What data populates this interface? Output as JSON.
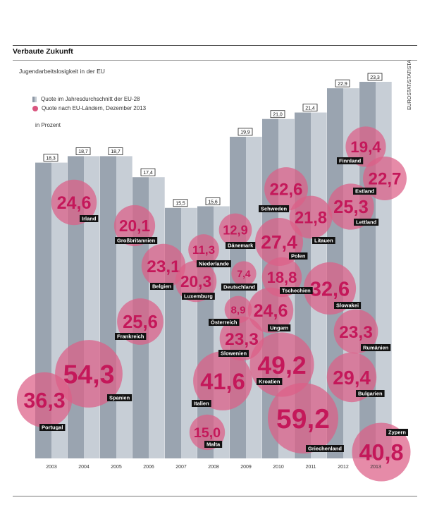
{
  "header": {
    "title": "Verbaute Zukunft",
    "subtitle": "Jugendarbeitslosigkeit in der EU",
    "source": "EUROSTAT/STATISTA"
  },
  "legend": {
    "bar_label": "Quote im Jahresdurchschnitt der EU-28",
    "dot_label": "Quote nach EU-Ländern, Dezember 2013",
    "unit": "in Prozent"
  },
  "colors": {
    "bar_dark": "#9aa4b0",
    "bar_light": "#c7ced6",
    "bubble": "#dd5e87",
    "bubble_text": "#c4185a",
    "label_bg": "#111111"
  },
  "chart_data": [
    {
      "type": "bar",
      "categories": [
        "2003",
        "2004",
        "2005",
        "2006",
        "2007",
        "2008",
        "2009",
        "2010",
        "2011",
        "2012",
        "2013"
      ],
      "values": [
        18.3,
        18.7,
        18.7,
        17.4,
        15.5,
        15.6,
        19.9,
        21.0,
        21.4,
        22.9,
        23.3
      ],
      "value_labels": [
        "18,3",
        "18,7",
        "18,7",
        "17,4",
        "15,5",
        "15,6",
        "19,9",
        "21,0",
        "21,4",
        "22,9",
        "23,3"
      ],
      "series": [
        {
          "name": "Quote im Jahresdurchschnitt der EU-28"
        }
      ]
    },
    {
      "type": "scatter",
      "series": [
        {
          "name": "Quote nach EU-Ländern, Dezember 2013"
        }
      ],
      "points": [
        {
          "country": "Irland",
          "value": 24.6,
          "label": "24,6"
        },
        {
          "country": "Großbritannien",
          "value": 20.1,
          "label": "20,1"
        },
        {
          "country": "Belgien",
          "value": 23.1,
          "label": "23,1"
        },
        {
          "country": "Niederlande",
          "value": 11.3,
          "label": "11,3"
        },
        {
          "country": "Luxemburg",
          "value": 20.3,
          "label": "20,3"
        },
        {
          "country": "Frankreich",
          "value": 25.6,
          "label": "25,6"
        },
        {
          "country": "Spanien",
          "value": 54.3,
          "label": "54,3"
        },
        {
          "country": "Portugal",
          "value": 36.3,
          "label": "36,3"
        },
        {
          "country": "Dänemark",
          "value": 12.9,
          "label": "12,9"
        },
        {
          "country": "Deutschland",
          "value": 7.4,
          "label": "7,4"
        },
        {
          "country": "Österreich",
          "value": 8.9,
          "label": "8,9"
        },
        {
          "country": "Slowenien",
          "value": 23.3,
          "label": "23,3"
        },
        {
          "country": "Italien",
          "value": 41.6,
          "label": "41,6"
        },
        {
          "country": "Malta",
          "value": 15.0,
          "label": "15,0"
        },
        {
          "country": "Schweden",
          "value": 22.6,
          "label": "22,6"
        },
        {
          "country": "Polen",
          "value": 27.4,
          "label": "27,4"
        },
        {
          "country": "Tschechien",
          "value": 18.8,
          "label": "18,8"
        },
        {
          "country": "Ungarn",
          "value": 24.6,
          "label": "24,6"
        },
        {
          "country": "Kroatien",
          "value": 49.2,
          "label": "49,2"
        },
        {
          "country": "Griechenland",
          "value": 59.2,
          "label": "59,2"
        },
        {
          "country": "Litauen",
          "value": 21.8,
          "label": "21,8"
        },
        {
          "country": "Slowakei",
          "value": 32.6,
          "label": "32,6"
        },
        {
          "country": "Rumänien",
          "value": 23.3,
          "label": "23,3"
        },
        {
          "country": "Bulgarien",
          "value": 29.4,
          "label": "29,4"
        },
        {
          "country": "Finnland",
          "value": 19.4,
          "label": "19,4"
        },
        {
          "country": "Estland",
          "value": 22.7,
          "label": "22,7"
        },
        {
          "country": "Lettland",
          "value": 25.3,
          "label": "25,3"
        },
        {
          "country": "Zypern",
          "value": 40.8,
          "label": "40,8"
        }
      ]
    }
  ]
}
